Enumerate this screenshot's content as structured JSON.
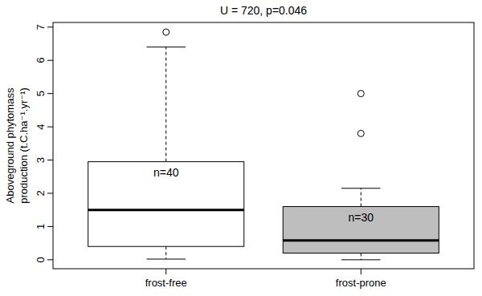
{
  "chart_data": {
    "type": "box",
    "title": "U = 720, p=0.046",
    "ylabel": [
      "Aboveground phytomass",
      "production (t.C.ha⁻¹.yr⁻¹)"
    ],
    "categories": [
      "frost-free",
      "frost-prone"
    ],
    "boxes": [
      {
        "whisker_low": 0.02,
        "q1": 0.4,
        "median": 1.5,
        "q3": 2.95,
        "whisker_high": 6.4,
        "outliers": [
          6.85
        ],
        "color": "#ffffff",
        "label": "n=40"
      },
      {
        "whisker_low": 0.0,
        "q1": 0.2,
        "median": 0.58,
        "q3": 1.6,
        "whisker_high": 2.15,
        "outliers": [
          3.8,
          5.0
        ],
        "color": "#bebebe",
        "label": "n=30"
      }
    ],
    "ylim": [
      -0.27,
      7.14
    ],
    "yticks": [
      0,
      1,
      2,
      3,
      4,
      5,
      6,
      7
    ]
  }
}
